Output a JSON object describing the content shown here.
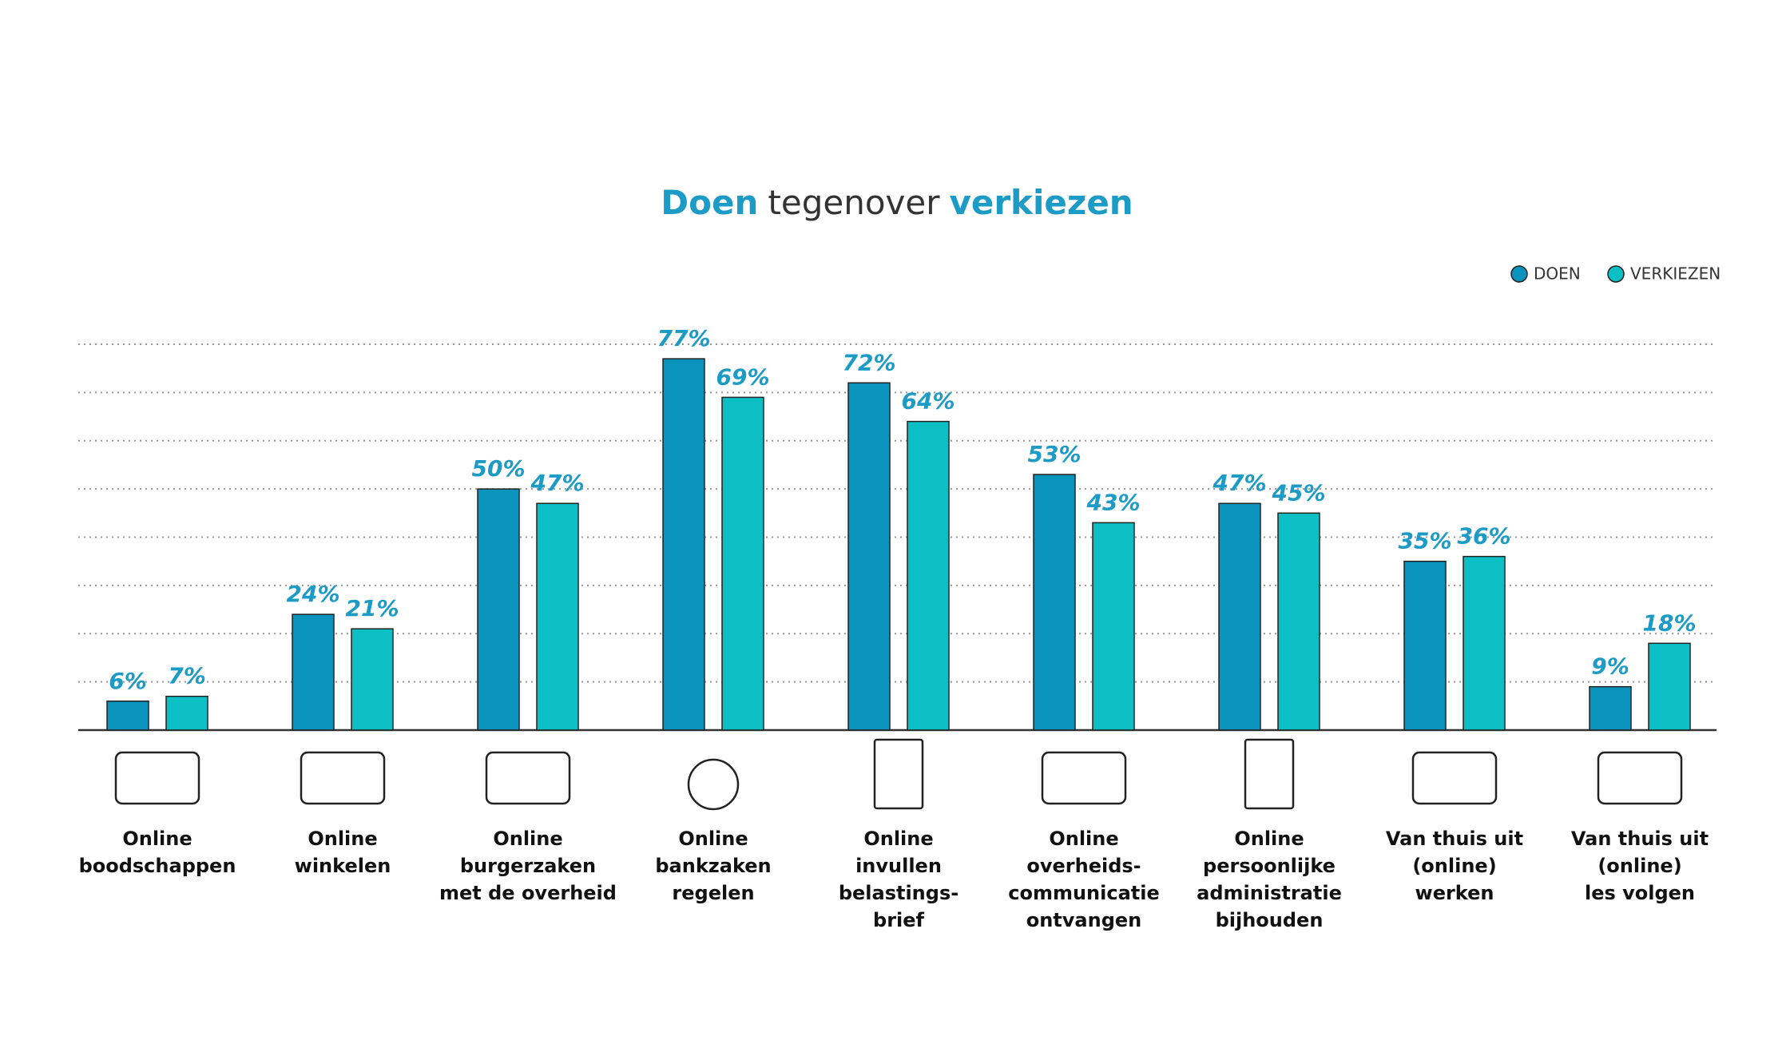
{
  "chart_data": {
    "type": "bar",
    "title": [
      "Doen",
      "tegenover",
      "verkiezen"
    ],
    "categories": [
      [
        "Online",
        "boodschappen"
      ],
      [
        "Online",
        "winkelen"
      ],
      [
        "Online",
        "burgerzaken",
        "met de overheid"
      ],
      [
        "Online",
        "bankzaken",
        "regelen"
      ],
      [
        "Online",
        "invullen",
        "belastings-",
        "brief"
      ],
      [
        "Online",
        "overheids-",
        "communicatie",
        "ontvangen"
      ],
      [
        "Online",
        "persoonlijke",
        "administratie",
        "bijhouden"
      ],
      [
        "Van thuis uit",
        "(online)",
        "werken"
      ],
      [
        "Van thuis uit",
        "(online)",
        "les volgen"
      ]
    ],
    "series": [
      {
        "name": "DOEN",
        "color": "#0a93bd",
        "values": [
          6,
          24,
          50,
          77,
          72,
          53,
          47,
          35,
          9
        ],
        "value_labels": [
          "6%",
          "24%",
          "50%",
          "77%",
          "72%",
          "53%",
          "47%",
          "35%",
          "9%"
        ]
      },
      {
        "name": "VERKIEZEN",
        "color": "#0bbfc4",
        "values": [
          7,
          21,
          47,
          69,
          64,
          43,
          45,
          36,
          18
        ],
        "value_labels": [
          "7%",
          "21%",
          "47%",
          "69%",
          "64%",
          "43%",
          "45%",
          "36%",
          "18%"
        ]
      }
    ],
    "ylim": [
      0,
      80
    ],
    "yticks": [
      0,
      10,
      20,
      30,
      40,
      50,
      60,
      70,
      80
    ],
    "grid": true,
    "legend": "top-right"
  }
}
